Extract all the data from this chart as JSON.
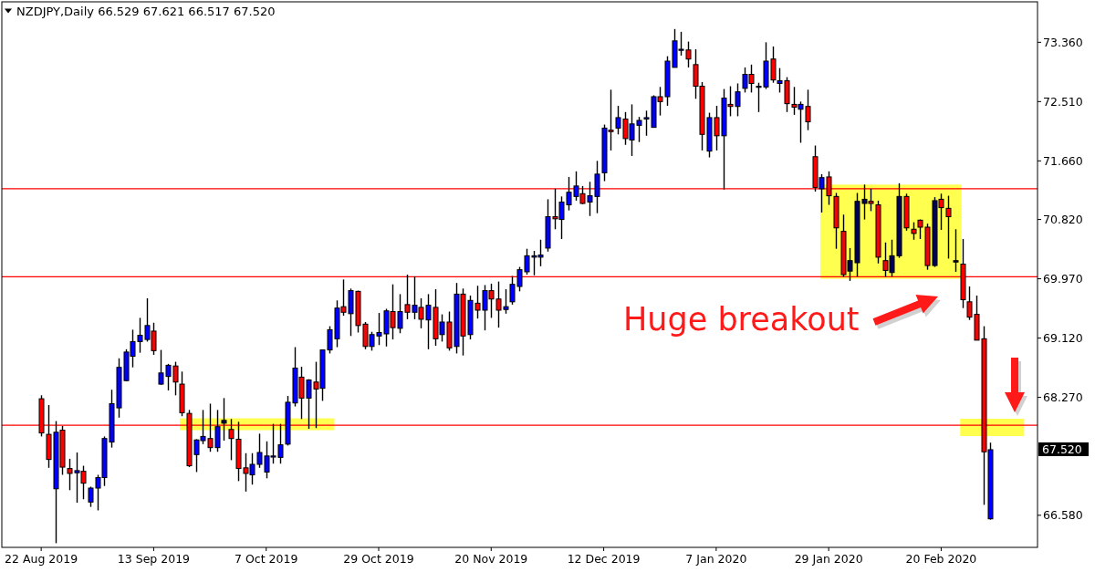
{
  "chart_data": {
    "type": "candlestick",
    "title": "NZDJPY,Daily 66.529 67.621 66.517 67.520",
    "categories": [
      "22 Aug 2019",
      null,
      null,
      null,
      null,
      null,
      null,
      null,
      null,
      null,
      null,
      null,
      null,
      null,
      null,
      null,
      "13 Sep 2019",
      null,
      null,
      null,
      null,
      null,
      null,
      null,
      null,
      null,
      null,
      null,
      null,
      null,
      null,
      null,
      "7 Oct 2019",
      null,
      null,
      null,
      null,
      null,
      null,
      null,
      null,
      null,
      null,
      null,
      null,
      null,
      null,
      null,
      "29 Oct 2019",
      null,
      null,
      null,
      null,
      null,
      null,
      null,
      null,
      null,
      null,
      null,
      null,
      null,
      null,
      null,
      "20 Nov 2019",
      null,
      null,
      null,
      null,
      null,
      null,
      null,
      null,
      null,
      null,
      null,
      null,
      null,
      null,
      null,
      "12 Dec 2019",
      null,
      null,
      null,
      null,
      null,
      null,
      null,
      null,
      null,
      null,
      null,
      null,
      null,
      null,
      null,
      "7 Jan 2020",
      null,
      null,
      null,
      null,
      null,
      null,
      null,
      null,
      null,
      null,
      null,
      null,
      null,
      null,
      null,
      "29 Jan 2020",
      null,
      null,
      null,
      null,
      null,
      null,
      null,
      null,
      null,
      null,
      null,
      null,
      null,
      null,
      null,
      "20 Feb 2020",
      null,
      null,
      null,
      null,
      null,
      null,
      null
    ],
    "ohlc": [
      [
        68.25,
        68.3,
        67.71,
        67.76
      ],
      [
        67.74,
        68.16,
        67.26,
        67.38
      ],
      [
        66.96,
        67.93,
        66.18,
        67.77
      ],
      [
        67.8,
        67.86,
        67.16,
        67.27
      ],
      [
        67.25,
        67.39,
        66.94,
        67.18
      ],
      [
        67.19,
        67.48,
        66.76,
        67.22
      ],
      [
        67.21,
        67.29,
        66.81,
        67.04
      ],
      [
        66.77,
        66.99,
        66.7,
        66.97
      ],
      [
        66.97,
        67.16,
        66.65,
        67.12
      ],
      [
        67.12,
        67.71,
        67.0,
        67.68
      ],
      [
        67.63,
        68.38,
        67.55,
        68.18
      ],
      [
        68.12,
        68.83,
        67.98,
        68.7
      ],
      [
        68.51,
        68.96,
        68.5,
        68.92
      ],
      [
        68.86,
        69.24,
        68.7,
        69.07
      ],
      [
        69.07,
        69.41,
        68.91,
        69.16
      ],
      [
        69.1,
        69.69,
        69.07,
        69.3
      ],
      [
        69.22,
        69.34,
        68.88,
        68.94
      ],
      [
        68.46,
        68.95,
        68.45,
        68.62
      ],
      [
        68.57,
        68.75,
        68.37,
        68.73
      ],
      [
        68.72,
        68.78,
        68.3,
        68.49
      ],
      [
        68.46,
        68.64,
        68.0,
        68.05
      ],
      [
        68.04,
        68.09,
        67.27,
        67.29
      ],
      [
        67.45,
        67.67,
        67.2,
        67.66
      ],
      [
        67.65,
        68.09,
        67.6,
        67.71
      ],
      [
        67.68,
        68.18,
        67.49,
        67.55
      ],
      [
        67.55,
        68.09,
        67.49,
        67.85
      ],
      [
        67.9,
        68.26,
        67.65,
        67.94
      ],
      [
        67.81,
        67.96,
        67.37,
        67.68
      ],
      [
        67.67,
        67.92,
        67.07,
        67.25
      ],
      [
        67.26,
        67.47,
        66.92,
        67.18
      ],
      [
        67.16,
        67.47,
        67.02,
        67.31
      ],
      [
        67.31,
        67.75,
        67.26,
        67.48
      ],
      [
        67.2,
        67.64,
        67.11,
        67.43
      ],
      [
        67.42,
        67.89,
        67.32,
        67.43
      ],
      [
        67.41,
        67.89,
        67.32,
        67.59
      ],
      [
        67.6,
        68.29,
        67.58,
        68.2
      ],
      [
        68.19,
        68.99,
        68.14,
        68.69
      ],
      [
        68.56,
        68.71,
        67.96,
        68.26
      ],
      [
        68.26,
        68.53,
        67.82,
        68.52
      ],
      [
        68.49,
        68.78,
        67.83,
        68.39
      ],
      [
        68.4,
        68.95,
        68.22,
        68.95
      ],
      [
        68.95,
        69.29,
        68.9,
        69.24
      ],
      [
        69.11,
        69.66,
        68.99,
        69.55
      ],
      [
        69.57,
        69.96,
        69.44,
        69.49
      ],
      [
        69.47,
        69.83,
        69.15,
        69.8
      ],
      [
        69.79,
        69.8,
        69.2,
        69.3
      ],
      [
        69.32,
        69.35,
        68.96,
        69.0
      ],
      [
        69.0,
        69.21,
        68.94,
        69.17
      ],
      [
        69.15,
        69.48,
        69.02,
        69.2
      ],
      [
        69.18,
        69.54,
        69.0,
        69.51
      ],
      [
        69.5,
        69.89,
        69.1,
        69.27
      ],
      [
        69.26,
        69.75,
        69.19,
        69.5
      ],
      [
        69.6,
        70.03,
        69.39,
        69.49
      ],
      [
        69.49,
        70.0,
        69.39,
        69.59
      ],
      [
        69.56,
        69.69,
        69.26,
        69.39
      ],
      [
        69.38,
        69.75,
        68.96,
        69.59
      ],
      [
        69.56,
        69.82,
        69.01,
        69.11
      ],
      [
        69.17,
        69.46,
        69.07,
        69.35
      ],
      [
        69.35,
        69.5,
        68.94,
        68.98
      ],
      [
        69.0,
        69.91,
        68.9,
        69.75
      ],
      [
        69.75,
        69.83,
        68.87,
        69.15
      ],
      [
        69.17,
        69.73,
        69.1,
        69.66
      ],
      [
        69.62,
        69.87,
        69.4,
        69.52
      ],
      [
        69.52,
        69.88,
        69.23,
        69.8
      ],
      [
        69.8,
        69.9,
        69.41,
        69.68
      ],
      [
        69.68,
        69.93,
        69.27,
        69.52
      ],
      [
        69.53,
        69.82,
        69.47,
        69.57
      ],
      [
        69.64,
        70.01,
        69.6,
        69.89
      ],
      [
        69.86,
        70.14,
        69.79,
        70.1
      ],
      [
        70.07,
        70.4,
        70.03,
        70.3
      ],
      [
        70.28,
        70.37,
        70.02,
        70.3
      ],
      [
        70.28,
        70.53,
        70.15,
        70.31
      ],
      [
        70.41,
        71.11,
        70.36,
        70.86
      ],
      [
        70.86,
        71.26,
        70.68,
        70.83
      ],
      [
        70.82,
        71.15,
        70.54,
        71.07
      ],
      [
        71.03,
        71.43,
        70.95,
        71.21
      ],
      [
        71.15,
        71.51,
        71.09,
        71.3
      ],
      [
        71.19,
        71.3,
        71.04,
        71.05
      ],
      [
        71.07,
        71.36,
        70.87,
        71.16
      ],
      [
        71.15,
        71.66,
        70.91,
        71.47
      ],
      [
        71.49,
        72.18,
        71.37,
        72.13
      ],
      [
        72.1,
        72.68,
        71.81,
        72.08
      ],
      [
        72.13,
        72.45,
        72.04,
        72.28
      ],
      [
        72.26,
        72.36,
        71.89,
        71.98
      ],
      [
        71.96,
        72.47,
        71.73,
        72.19
      ],
      [
        72.17,
        72.29,
        71.93,
        72.24
      ],
      [
        72.26,
        72.38,
        72.02,
        72.28
      ],
      [
        72.14,
        72.6,
        72.14,
        72.58
      ],
      [
        72.58,
        72.72,
        72.31,
        72.51
      ],
      [
        72.58,
        73.16,
        72.45,
        73.09
      ],
      [
        73.0,
        73.55,
        73.0,
        73.38
      ],
      [
        73.25,
        73.51,
        73.17,
        73.26
      ],
      [
        73.25,
        73.37,
        73.0,
        73.12
      ],
      [
        73.04,
        73.26,
        72.55,
        72.73
      ],
      [
        72.73,
        72.79,
        71.81,
        72.04
      ],
      [
        71.8,
        72.35,
        71.71,
        72.28
      ],
      [
        72.28,
        72.45,
        71.81,
        72.02
      ],
      [
        72.02,
        72.69,
        71.25,
        72.56
      ],
      [
        72.47,
        72.73,
        72.3,
        72.44
      ],
      [
        72.44,
        72.77,
        72.3,
        72.65
      ],
      [
        72.7,
        73.0,
        72.64,
        72.9
      ],
      [
        72.9,
        73.04,
        72.64,
        72.77
      ],
      [
        72.72,
        72.78,
        72.36,
        72.73
      ],
      [
        72.72,
        73.36,
        72.69,
        73.09
      ],
      [
        73.12,
        73.3,
        72.78,
        72.82
      ],
      [
        72.77,
        72.99,
        72.64,
        72.81
      ],
      [
        72.81,
        72.86,
        72.36,
        72.48
      ],
      [
        72.47,
        72.72,
        72.32,
        72.43
      ],
      [
        72.4,
        72.51,
        71.92,
        72.47
      ],
      [
        72.44,
        72.68,
        72.1,
        72.22
      ],
      [
        71.72,
        71.88,
        71.22,
        71.28
      ],
      [
        71.26,
        71.47,
        70.92,
        71.42
      ],
      [
        71.43,
        71.51,
        71.03,
        71.16
      ],
      [
        71.15,
        71.2,
        70.4,
        70.7
      ],
      [
        70.65,
        70.89,
        70.0,
        70.03
      ],
      [
        70.08,
        70.41,
        69.94,
        70.23
      ],
      [
        70.2,
        71.2,
        70.0,
        71.08
      ],
      [
        71.05,
        71.32,
        70.82,
        71.11
      ],
      [
        71.08,
        71.26,
        70.94,
        71.05
      ],
      [
        71.03,
        71.09,
        70.19,
        70.28
      ],
      [
        70.23,
        70.49,
        70.0,
        70.09
      ],
      [
        70.06,
        70.53,
        70.0,
        70.3
      ],
      [
        70.3,
        71.34,
        70.27,
        71.15
      ],
      [
        71.15,
        71.19,
        70.66,
        70.7
      ],
      [
        70.68,
        70.78,
        70.53,
        70.62
      ],
      [
        70.81,
        70.82,
        70.54,
        70.71
      ],
      [
        70.71,
        70.76,
        70.1,
        70.16
      ],
      [
        70.16,
        71.14,
        70.14,
        71.09
      ],
      [
        71.11,
        71.19,
        70.67,
        70.99
      ],
      [
        70.98,
        71.16,
        70.26,
        70.86
      ],
      [
        70.21,
        70.68,
        70.07,
        70.23
      ],
      [
        70.18,
        70.54,
        69.55,
        69.67
      ],
      [
        69.64,
        69.86,
        69.38,
        69.42
      ],
      [
        69.46,
        69.73,
        69.09,
        69.09
      ],
      [
        69.11,
        69.29,
        66.73,
        67.49
      ],
      [
        66.529,
        67.621,
        66.517,
        67.52
      ]
    ],
    "colors": [
      "#ff0000",
      "#ff0000",
      "#0000ff",
      "#ff0000",
      "#ff0000",
      "#0000ff",
      "#ff0000",
      "#0000ff",
      "#0000ff",
      "#0000ff",
      "#0000ff",
      "#0000ff",
      "#0000ff",
      "#0000ff",
      "#0000ff",
      "#0000ff",
      "#ff0000",
      "#0000ff",
      "#0000ff",
      "#ff0000",
      "#ff0000",
      "#ff0000",
      "#0000ff",
      "#0000ff",
      "#ff0000",
      "#0000ff",
      "#000055",
      "#ff0000",
      "#ff0000",
      "#ff0000",
      "#0000ff",
      "#0000ff",
      "#0000ff",
      "#0000ff",
      "#0000ff",
      "#0000ff",
      "#0000ff",
      "#ff0000",
      "#0000ff",
      "#ff0000",
      "#0000ff",
      "#0000ff",
      "#0000ff",
      "#ff0000",
      "#0000ff",
      "#ff0000",
      "#ff0000",
      "#0000ff",
      "#0000ff",
      "#0000ff",
      "#ff0000",
      "#0000ff",
      "#ff0000",
      "#0000ff",
      "#ff0000",
      "#0000ff",
      "#ff0000",
      "#0000ff",
      "#ff0000",
      "#0000ff",
      "#ff0000",
      "#0000ff",
      "#ff0000",
      "#0000ff",
      "#ff0000",
      "#ff0000",
      "#0000ff",
      "#0000ff",
      "#0000ff",
      "#0000ff",
      "#0000ff",
      "#0000ff",
      "#0000ff",
      "#ff0000",
      "#0000ff",
      "#0000ff",
      "#0000ff",
      "#ff0000",
      "#0000ff",
      "#0000ff",
      "#0000ff",
      "#ff0000",
      "#0000ff",
      "#ff0000",
      "#0000ff",
      "#0000ff",
      "#0000ff",
      "#0000ff",
      "#ff0000",
      "#0000ff",
      "#0000ff",
      "#0000ff",
      "#ff0000",
      "#ff0000",
      "#ff0000",
      "#0000ff",
      "#ff0000",
      "#0000ff",
      "#ff0000",
      "#0000ff",
      "#0000ff",
      "#ff0000",
      "#0000ff",
      "#0000ff",
      "#ff0000",
      "#0000ff",
      "#ff0000",
      "#ff0000",
      "#0000ff",
      "#ff0000",
      "#ff0000",
      "#0000ff",
      "#ff0000",
      "#ff0000",
      "#ff0000",
      "#000055",
      "#000055",
      "#000055",
      "#ff0000",
      "#ff0000",
      "#ff0000",
      "#000055",
      "#000055",
      "#ff0000",
      "#ff0000",
      "#ff0000",
      "#ff0000",
      "#000055",
      "#ff0000",
      "#ff0000",
      "#000055",
      "#ff0000",
      "#ff0000",
      "#ff0000",
      "#ff0000",
      "#0000ff"
    ],
    "ylim": [
      66.12,
      73.94
    ],
    "yticks": [
      {
        "value": 66.58,
        "label": "66.580"
      },
      {
        "value": 68.27,
        "label": "68.270"
      },
      {
        "value": 69.12,
        "label": "69.120"
      },
      {
        "value": 69.97,
        "label": "69.970"
      },
      {
        "value": 70.82,
        "label": "70.820"
      },
      {
        "value": 71.66,
        "label": "71.660"
      },
      {
        "value": 72.51,
        "label": "72.510"
      },
      {
        "value": 73.36,
        "label": "73.360"
      }
    ],
    "ref_lines": [
      {
        "axis": "y",
        "value": 71.26,
        "color": "#ff0000"
      },
      {
        "axis": "y",
        "value": 70.0,
        "color": "#ff0000"
      },
      {
        "axis": "y",
        "value": 67.87,
        "color": "#ff0000"
      }
    ],
    "bands": [
      {
        "axis": "y",
        "from": 67.8,
        "to": 67.97,
        "color": "#ffff50"
      },
      {
        "axis": "y",
        "from": 69.97,
        "to": 71.32,
        "color": "#ffff50"
      }
    ],
    "annotations": [
      "Huge breakout",
      "67.520"
    ]
  }
}
